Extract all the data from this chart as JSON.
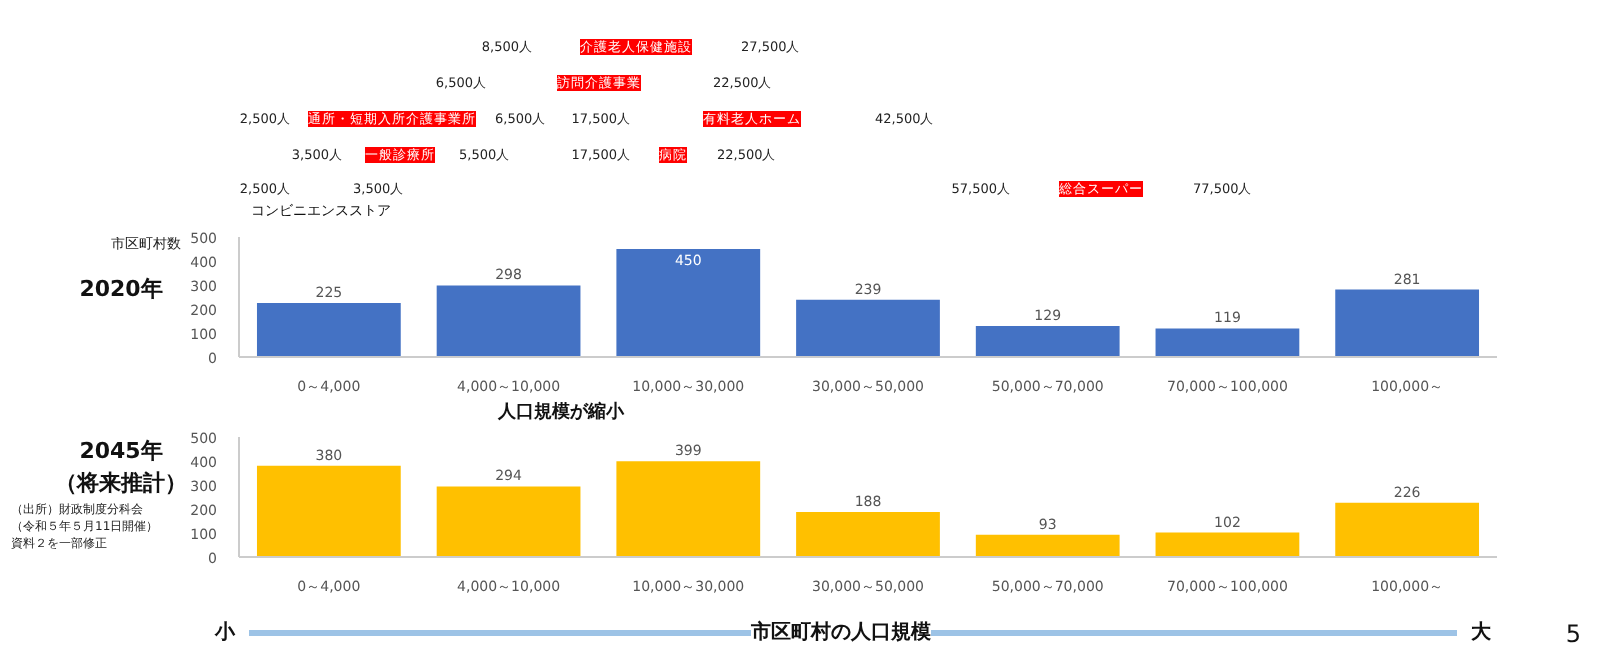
{
  "chart_data": [
    {
      "type": "other",
      "color": "#ff0000",
      "annotations": [
        "8,500人",
        "介護老人保健施設",
        "27,500人",
        "6,500人",
        "訪問介護事業",
        "22,500人",
        "2,500人",
        "通所・短期入所介護事業所",
        "6,500人",
        "17,500人",
        "有料老人ホーム",
        "42,500人",
        "3,500人",
        "一般診療所",
        "5,500人",
        "17,500人",
        "病院",
        "22,500人",
        "2,500人",
        "コンビニエンスストア",
        "3,500人",
        "57,500人",
        "総合スーパー",
        "77,500人"
      ]
    },
    {
      "type": "bar",
      "title": "2020年",
      "ylabel": "市区町村数",
      "categories": [
        "0～4,000",
        "4,000～10,000",
        "10,000～30,000",
        "30,000～50,000",
        "50,000～70,000",
        "70,000～100,000",
        "100,000～"
      ],
      "values": [
        225,
        298,
        450,
        239,
        129,
        119,
        281
      ],
      "color": "#4472c4",
      "ylim": [
        0,
        500
      ],
      "yticks": [
        0,
        100,
        200,
        300,
        400,
        500
      ],
      "data_labels": true
    },
    {
      "type": "bar",
      "title": "2045年（将来推計）",
      "xlabel": "市区町村の人口規模",
      "categories": [
        "0～4,000",
        "4,000～10,000",
        "10,000～30,000",
        "30,000～50,000",
        "50,000～70,000",
        "70,000～100,000",
        "100,000～"
      ],
      "values": [
        380,
        294,
        399,
        188,
        93,
        102,
        226
      ],
      "color": "#ffc000",
      "ylim": [
        0,
        500
      ],
      "yticks": [
        0,
        100,
        200,
        300,
        400,
        500
      ],
      "data_labels": true,
      "annotations": [
        "人口規模が縮小",
        "（出所）財政制度分科会（令和５年５月11日開催）資料２を一部修正",
        "小",
        "大",
        "5"
      ]
    }
  ]
}
